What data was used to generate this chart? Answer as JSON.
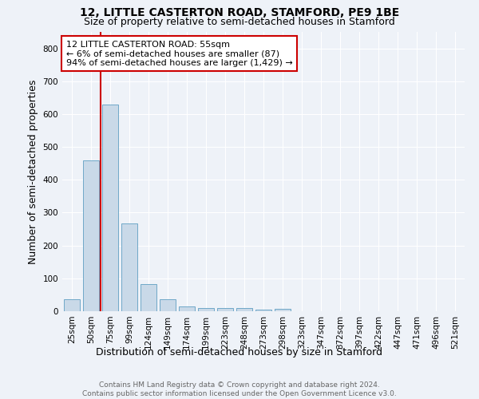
{
  "title": "12, LITTLE CASTERTON ROAD, STAMFORD, PE9 1BE",
  "subtitle": "Size of property relative to semi-detached houses in Stamford",
  "xlabel": "Distribution of semi-detached houses by size in Stamford",
  "ylabel": "Number of semi-detached properties",
  "footnote": "Contains HM Land Registry data © Crown copyright and database right 2024.\nContains public sector information licensed under the Open Government Licence v3.0.",
  "annotation_title": "12 LITTLE CASTERTON ROAD: 55sqm",
  "annotation_line1": "← 6% of semi-detached houses are smaller (87)",
  "annotation_line2": "94% of semi-detached houses are larger (1,429) →",
  "bar_categories": [
    "25sqm",
    "50sqm",
    "75sqm",
    "99sqm",
    "124sqm",
    "149sqm",
    "174sqm",
    "199sqm",
    "223sqm",
    "248sqm",
    "273sqm",
    "298sqm",
    "323sqm",
    "347sqm",
    "372sqm",
    "397sqm",
    "422sqm",
    "447sqm",
    "471sqm",
    "496sqm",
    "521sqm"
  ],
  "bar_values": [
    37,
    460,
    630,
    268,
    82,
    36,
    15,
    10,
    10,
    10,
    6,
    8,
    0,
    0,
    0,
    0,
    0,
    0,
    0,
    0,
    0
  ],
  "bar_color": "#c9d9e8",
  "bar_edge_color": "#6fa8c8",
  "ylim": [
    0,
    850
  ],
  "yticks": [
    0,
    100,
    200,
    300,
    400,
    500,
    600,
    700,
    800
  ],
  "background_color": "#eef2f8",
  "annotation_box_color": "#ffffff",
  "annotation_box_edge": "#cc0000",
  "red_line_color": "#cc0000",
  "title_fontsize": 10,
  "subtitle_fontsize": 9,
  "axis_label_fontsize": 9,
  "tick_fontsize": 7.5,
  "annotation_fontsize": 8,
  "footnote_fontsize": 6.5
}
